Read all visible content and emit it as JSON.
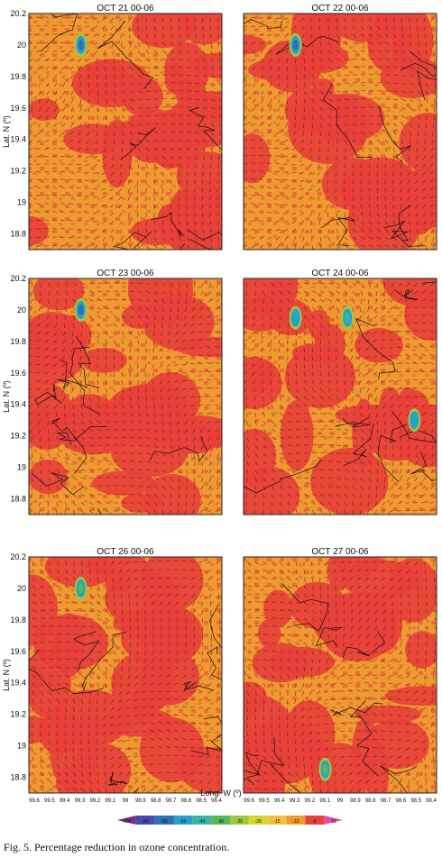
{
  "chart_data": {
    "type": "heatmap",
    "ylabel": "Lat. N (º)",
    "xlabel": "Long. W (º)",
    "y_ticks": [
      "20.2",
      "20",
      "19.8",
      "19.6",
      "19.4",
      "19.2",
      "19",
      "18.8"
    ],
    "y_tick_values": [
      20.2,
      20.0,
      19.8,
      19.6,
      19.4,
      19.2,
      19.0,
      18.8
    ],
    "x_ticks": [
      "99.6",
      "99.5",
      "99.4",
      "99.3",
      "99.2",
      "99.1",
      "99",
      "98.9",
      "98.8",
      "98.7",
      "98.6",
      "98.5",
      "98.4"
    ],
    "colorbar": {
      "ticks": [
        "-100",
        "-80",
        "-60",
        "-50",
        "-40",
        "-30",
        "-25",
        "-20",
        "-15",
        "-10",
        "0",
        "10"
      ],
      "colors": [
        "#7b2d8e",
        "#4a4aa8",
        "#2e6fb8",
        "#2a9fc9",
        "#39b5a8",
        "#58b858",
        "#9cc940",
        "#d6d630",
        "#f0c040",
        "#ef9a30",
        "#e8403a",
        "#e84aa8"
      ]
    },
    "panels": [
      {
        "title": "OCT 21 00-06",
        "hotspots": [
          {
            "lon": 99.3,
            "lat": 20.0,
            "value": -60
          }
        ]
      },
      {
        "title": "OCT 22 00-06",
        "hotspots": [
          {
            "lon": 99.3,
            "lat": 20.0,
            "value": -60
          }
        ]
      },
      {
        "title": "OCT 23 00-06",
        "hotspots": [
          {
            "lon": 99.3,
            "lat": 20.0,
            "value": -60
          }
        ]
      },
      {
        "title": "OCT 24 00-06",
        "hotspots": [
          {
            "lon": 99.3,
            "lat": 19.95,
            "value": -50
          },
          {
            "lon": 98.95,
            "lat": 19.95,
            "value": -40
          },
          {
            "lon": 98.5,
            "lat": 19.3,
            "value": -50
          }
        ]
      },
      {
        "title": "OCT 26 00-06",
        "hotspots": [
          {
            "lon": 99.3,
            "lat": 20.0,
            "value": -30
          }
        ]
      },
      {
        "title": "OCT 27 00-06",
        "hotspots": [
          {
            "lon": 99.1,
            "lat": 18.85,
            "value": -30
          }
        ]
      }
    ]
  },
  "caption": "Fig. 5. Percentage reduction in ozone concentration."
}
